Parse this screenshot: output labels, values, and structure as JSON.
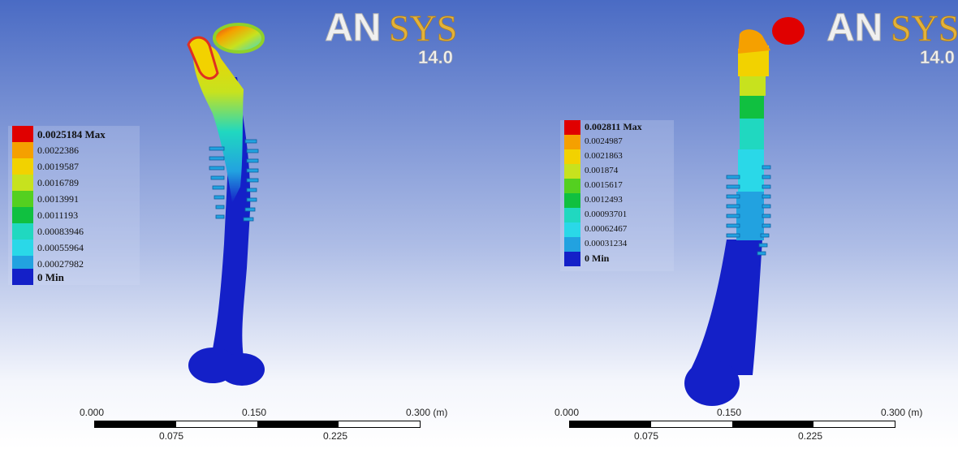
{
  "panels": [
    {
      "logo": {
        "brand": "ANSYS",
        "brand_part1": "AN",
        "brand_part2": "SYS",
        "version": "14.0"
      },
      "legend": {
        "max_label": "0.0025184 Max",
        "min_label": "0 Min",
        "values": [
          "0.0022386",
          "0.0019587",
          "0.0016789",
          "0.0013991",
          "0.0011193",
          "0.00083946",
          "0.00055964",
          "0.00027982"
        ],
        "colors": [
          "#e00000",
          "#f5a000",
          "#f2d200",
          "#c7e21e",
          "#54d020",
          "#10c040",
          "#20d8c0",
          "#2ad8e8",
          "#22a2e0",
          "#1420c8"
        ]
      },
      "scale": {
        "labels_top": [
          "0.000",
          "0.150",
          "0.300 (m)"
        ],
        "labels_bottom": [
          "0.075",
          "0.225"
        ]
      }
    },
    {
      "logo": {
        "brand": "ANSYS",
        "brand_part1": "AN",
        "brand_part2": "SYS",
        "version": "14.0"
      },
      "legend": {
        "max_label": "0.002811 Max",
        "min_label": "0 Min",
        "values": [
          "0.0024987",
          "0.0021863",
          "0.001874",
          "0.0015617",
          "0.0012493",
          "0.00093701",
          "0.00062467",
          "0.00031234"
        ],
        "colors": [
          "#e00000",
          "#f5a000",
          "#f2d200",
          "#c7e21e",
          "#54d020",
          "#10c040",
          "#20d8c0",
          "#2ad8e8",
          "#22a2e0",
          "#1420c8"
        ]
      },
      "scale": {
        "labels_top": [
          "0.000",
          "0.150",
          "0.300 (m)"
        ],
        "labels_bottom": [
          "0.075",
          "0.225"
        ]
      }
    }
  ],
  "colors": {
    "bg_top": "#4a6bc4",
    "bg_bottom": "#ffffff",
    "bone": "#1420c8"
  }
}
